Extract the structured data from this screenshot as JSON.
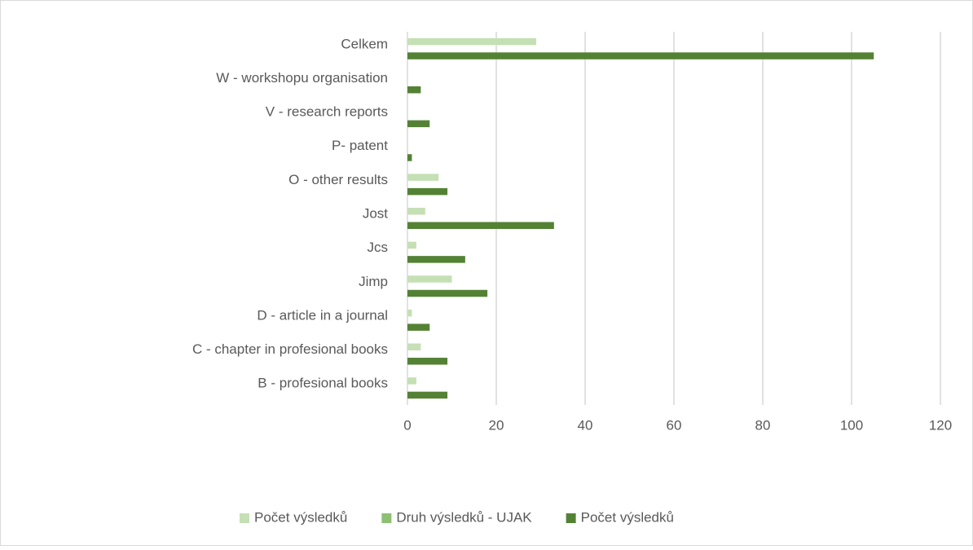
{
  "chart_data": {
    "type": "hbar",
    "categories": [
      "Celkem",
      "W - workshopu organisation",
      "V - research reports",
      "P- patent",
      "O - other results",
      "Jost",
      "Jcs",
      "Jimp",
      "D - article in a journal",
      "C - chapter in profesional books",
      "B - profesional books"
    ],
    "series": [
      {
        "name": "Počet výsledků",
        "color": "#c5e0b4",
        "values": [
          29,
          null,
          null,
          null,
          7,
          4,
          2,
          10,
          1,
          3,
          2
        ]
      },
      {
        "name": "Druh výsledků - UJAK",
        "color": "#8fbf73",
        "values": [
          null,
          null,
          null,
          null,
          null,
          null,
          null,
          null,
          null,
          null,
          null
        ]
      },
      {
        "name": "Počet výsledků",
        "color": "#548235",
        "values": [
          105,
          3,
          5,
          1,
          9,
          33,
          13,
          18,
          5,
          9,
          9
        ]
      }
    ],
    "xlim": [
      0,
      120
    ],
    "xticks": [
      0,
      20,
      40,
      60,
      80,
      100,
      120
    ],
    "grid": true,
    "legend": "bottom"
  }
}
